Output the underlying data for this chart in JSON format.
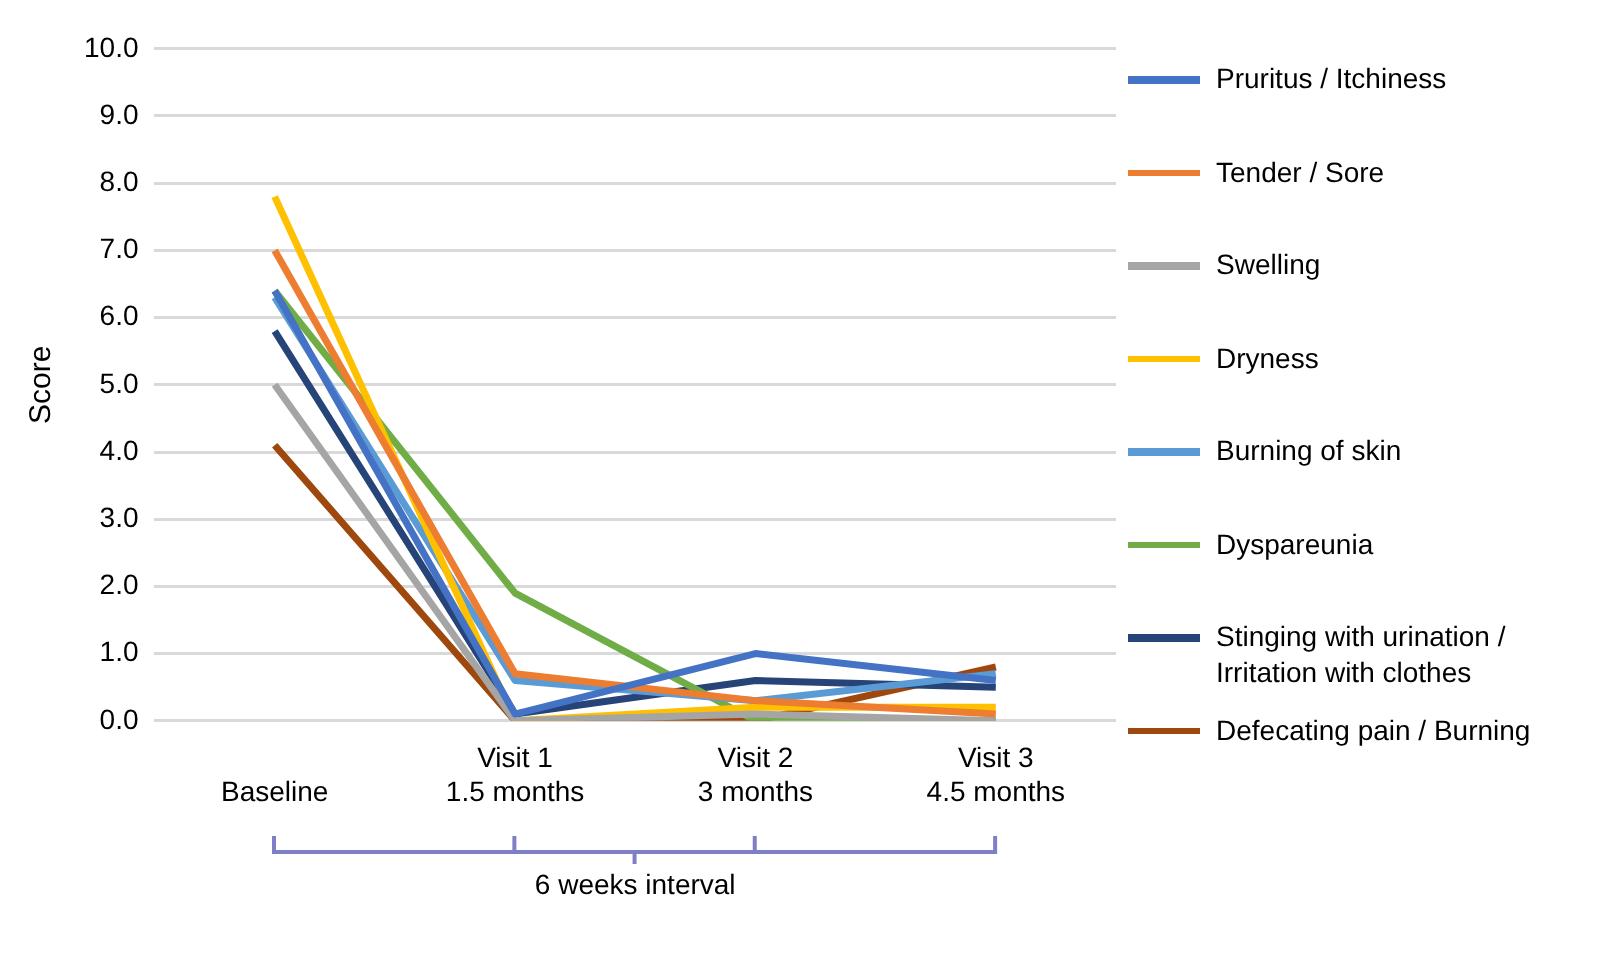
{
  "chart_data": {
    "type": "line",
    "ylabel": "Score",
    "categories": [
      "Baseline",
      "Visit 1\n1.5 months",
      "Visit 2\n3 months",
      "Visit 3\n4.5 months"
    ],
    "ylim": [
      0,
      10
    ],
    "yticks": [
      {
        "value": 0,
        "label": "0.0"
      },
      {
        "value": 1,
        "label": "1.0"
      },
      {
        "value": 2,
        "label": "2.0"
      },
      {
        "value": 3,
        "label": "3.0"
      },
      {
        "value": 4,
        "label": "4.0"
      },
      {
        "value": 5,
        "label": "5.0"
      },
      {
        "value": 6,
        "label": "6.0"
      },
      {
        "value": 7,
        "label": "7.0"
      },
      {
        "value": 8,
        "label": "8.0"
      },
      {
        "value": 9,
        "label": "9.0"
      },
      {
        "value": 10,
        "label": "10.0"
      }
    ],
    "grid": "y",
    "legend": "right",
    "marker": "none",
    "line_style": "solid",
    "annotations": [
      "6 weeks interval"
    ],
    "series": [
      {
        "name": "Pruritus  / Itchiness",
        "color": "#4472c4",
        "values": [
          6.4,
          0.1,
          1.0,
          0.6
        ]
      },
      {
        "name": "Tender / Sore",
        "color": "#ed7d31",
        "values": [
          7.0,
          0.7,
          0.3,
          0.1
        ]
      },
      {
        "name": "Swelling",
        "color": "#a5a5a5",
        "values": [
          5.0,
          0.0,
          0.1,
          0.0
        ]
      },
      {
        "name": "Dryness",
        "color": "#ffc000",
        "values": [
          7.8,
          0.0,
          0.2,
          0.2
        ]
      },
      {
        "name": "Burning of skin",
        "color": "#5b9bd5",
        "values": [
          6.3,
          0.6,
          0.3,
          0.7
        ]
      },
      {
        "name": "Dyspareunia",
        "color": "#70ad47",
        "values": [
          6.4,
          1.9,
          0.0,
          0.0
        ]
      },
      {
        "name": "Stinging with urination / Irritation with clothes",
        "color": "#264478",
        "values": [
          5.8,
          0.1,
          0.6,
          0.5
        ]
      },
      {
        "name": "Defecating pain / Burning",
        "color": "#9e480e",
        "values": [
          4.1,
          0.0,
          0.0,
          0.8
        ]
      }
    ]
  }
}
